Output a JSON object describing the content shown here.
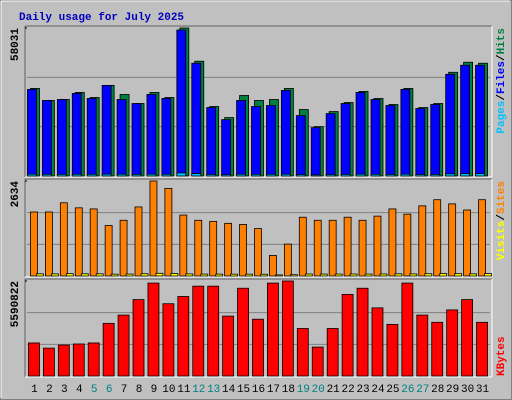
{
  "title": "Daily usage for July 2025",
  "separator": "/",
  "chart_data": [
    {
      "type": "bar",
      "ylim": [
        0,
        58031
      ],
      "yticks": [
        58031
      ],
      "series": [
        {
          "name": "Hits",
          "color": "#008040",
          "values": [
            34345,
            29610,
            30000,
            32770,
            30790,
            35530,
            31980,
            28425,
            32770,
            30790,
            58031,
            45000,
            27240,
            22900,
            31580,
            29610,
            30000,
            34345,
            26060,
            19345,
            25270,
            28820,
            33160,
            30400,
            28030,
            34345,
            26850,
            28425,
            40665,
            44610,
            44220
          ]
        },
        {
          "name": "Files",
          "color": "#0000ff",
          "values": [
            33950,
            29610,
            30000,
            32370,
            30400,
            35530,
            30000,
            28425,
            31980,
            30400,
            57245,
            44220,
            26850,
            22110,
            29610,
            27240,
            27640,
            33560,
            23690,
            18950,
            24480,
            28425,
            32770,
            30000,
            27640,
            33950,
            26450,
            28030,
            39875,
            43430,
            43430
          ]
        },
        {
          "name": "Pages",
          "color": "#00c0ff",
          "values": [
            700,
            650,
            640,
            690,
            660,
            720,
            680,
            610,
            700,
            660,
            1200,
            950,
            600,
            520,
            680,
            640,
            650,
            710,
            560,
            450,
            540,
            620,
            700,
            650,
            600,
            710,
            580,
            610,
            850,
            930,
            920
          ]
        }
      ]
    },
    {
      "type": "bar",
      "ylim": [
        0,
        2634
      ],
      "yticks": [
        2634
      ],
      "series": [
        {
          "name": "Sites",
          "color": "#ff8000",
          "values": [
            1775,
            1775,
            2030,
            1890,
            1860,
            1400,
            1545,
            1915,
            2634,
            2430,
            1690,
            1545,
            1515,
            1460,
            1430,
            1315,
            570,
            885,
            1630,
            1545,
            1545,
            1630,
            1545,
            1660,
            1860,
            1715,
            1945,
            2115,
            2000,
            1830,
            2115
          ]
        },
        {
          "name": "Visits",
          "color": "#ffff00",
          "values": [
            60,
            58,
            64,
            61,
            60,
            50,
            53,
            62,
            75,
            70,
            57,
            53,
            52,
            51,
            50,
            48,
            30,
            36,
            55,
            53,
            53,
            55,
            53,
            56,
            60,
            57,
            62,
            66,
            64,
            59,
            66
          ]
        }
      ]
    },
    {
      "type": "bar",
      "ylim": [
        0,
        5590822
      ],
      "yticks": [
        5590822
      ],
      "categories": [
        "1",
        "2",
        "3",
        "4",
        "5",
        "6",
        "7",
        "8",
        "9",
        "10",
        "11",
        "12",
        "13",
        "14",
        "15",
        "16",
        "17",
        "18",
        "19",
        "20",
        "21",
        "22",
        "23",
        "24",
        "25",
        "26",
        "27",
        "28",
        "29",
        "30",
        "31"
      ],
      "label_colors": [
        "#000000",
        "#000000",
        "#000000",
        "#000000",
        "#008080",
        "#008080",
        "#000000",
        "#000000",
        "#000000",
        "#000000",
        "#000000",
        "#008080",
        "#008080",
        "#000000",
        "#000000",
        "#000000",
        "#000000",
        "#000000",
        "#008080",
        "#008080",
        "#000000",
        "#000000",
        "#000000",
        "#000000",
        "#000000",
        "#008080",
        "#008080",
        "#000000",
        "#000000",
        "#000000",
        "#000000"
      ],
      "series": [
        {
          "name": "KBytes",
          "color": "#ff0000",
          "values": [
            1944640,
            1640790,
            1823100,
            1883870,
            1944640,
            3099270,
            3585430,
            4497000,
            5469300,
            4253900,
            4679300,
            5287000,
            5287000,
            3524660,
            5165450,
            3342350,
            5469300,
            5590822,
            2795420,
            1701560,
            2795420,
            4800830,
            5165450,
            4010820,
            3038500,
            5469300,
            3585430,
            3160040,
            3889280,
            4497000,
            3160040
          ]
        }
      ]
    }
  ]
}
